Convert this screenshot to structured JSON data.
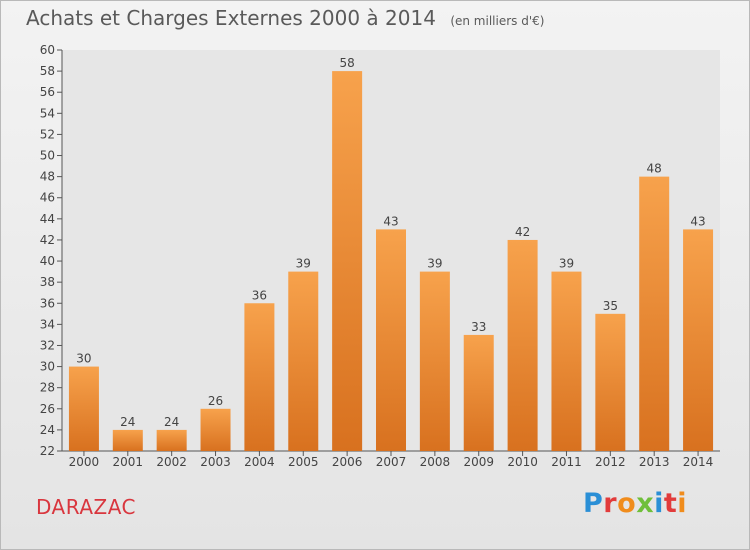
{
  "title": "Achats et Charges Externes 2000 à 2014",
  "subtitle": "(en milliers d'€)",
  "commune": "DARAZAC",
  "logo": {
    "text": "Proxiti",
    "colors": [
      "#2a8fd6",
      "#f08c1c",
      "#6fbf3a",
      "#e23b3b"
    ]
  },
  "chart_data": {
    "type": "bar",
    "categories": [
      "2000",
      "2001",
      "2002",
      "2003",
      "2004",
      "2005",
      "2006",
      "2007",
      "2008",
      "2009",
      "2010",
      "2011",
      "2012",
      "2013",
      "2014"
    ],
    "values": [
      30,
      24,
      24,
      26,
      36,
      39,
      58,
      43,
      39,
      33,
      42,
      39,
      35,
      48,
      43
    ],
    "ylim": [
      22,
      60
    ],
    "ytick_step": 2,
    "grid": false,
    "bar_color": "#f0913a",
    "title": "Achats et Charges Externes 2000 à 2014",
    "subtitle": "(en milliers d'€)"
  }
}
